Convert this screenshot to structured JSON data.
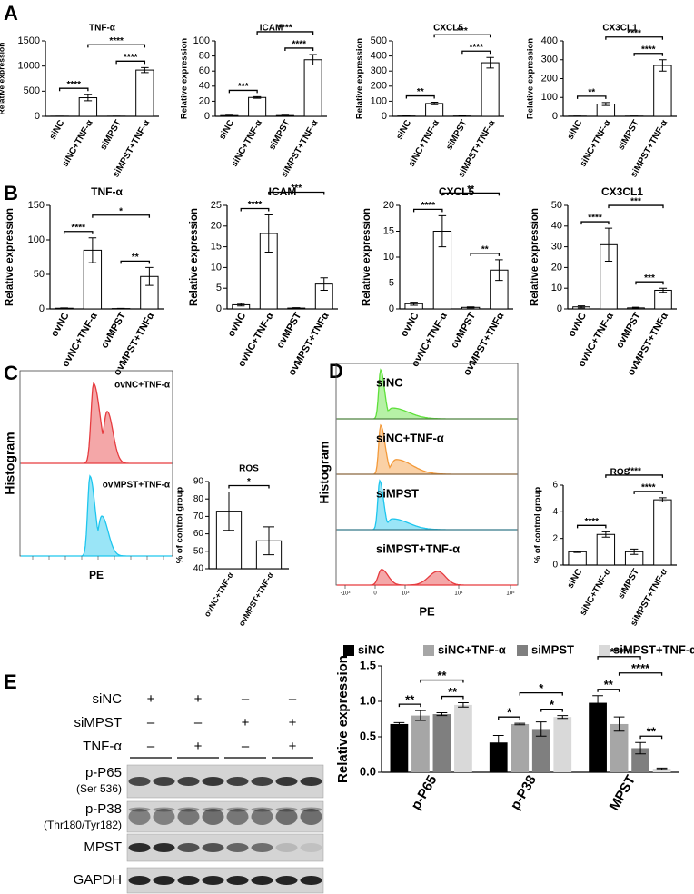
{
  "panel_labels": [
    "A",
    "B",
    "C",
    "D",
    "E"
  ],
  "chart_data": [
    {
      "type": "bar",
      "title": "TNF-α",
      "ylabel": "Relative expression",
      "categories": [
        "siNC",
        "siNC+TNF-α",
        "siMPST",
        "siMPST+TNF-α"
      ],
      "values": [
        2,
        370,
        2,
        920
      ],
      "errors": [
        1,
        60,
        1,
        50
      ],
      "color": "#ffffff",
      "ylim": [
        0,
        1500
      ],
      "yticks": [
        0,
        500,
        1000,
        1500
      ],
      "annotations": [
        {
          "between": [
            "siNC",
            "siNC+TNF-α"
          ],
          "label": "****"
        },
        {
          "between": [
            "siMPST",
            "siMPST+TNF-α"
          ],
          "label": "****"
        },
        {
          "between": [
            "siNC+TNF-α",
            "siMPST+TNF-α"
          ],
          "label": "****"
        }
      ]
    },
    {
      "type": "bar",
      "title": "ICAM",
      "ylabel": "Relative expression",
      "categories": [
        "siNC",
        "siNC+TNF-α",
        "siMPST",
        "siMPST+TNF-α"
      ],
      "values": [
        1,
        25,
        1,
        75
      ],
      "errors": [
        0.5,
        1,
        0.5,
        7
      ],
      "color": "#ffffff",
      "ylim": [
        0,
        100
      ],
      "yticks": [
        0,
        20,
        40,
        60,
        80,
        100
      ],
      "annotations": [
        {
          "between": [
            "siNC",
            "siNC+TNF-α"
          ],
          "label": "***"
        },
        {
          "between": [
            "siMPST",
            "siMPST+TNF-α"
          ],
          "label": "****"
        },
        {
          "between": [
            "siNC+TNF-α",
            "siMPST+TNF-α"
          ],
          "label": "****"
        }
      ]
    },
    {
      "type": "bar",
      "title": "CXCL5",
      "ylabel": "Relative expression",
      "categories": [
        "siNC",
        "siNC+TNF-α",
        "siMPST",
        "siMPST+TNF-α"
      ],
      "values": [
        2,
        85,
        2,
        355
      ],
      "errors": [
        1,
        8,
        1,
        35
      ],
      "color": "#ffffff",
      "ylim": [
        0,
        500
      ],
      "yticks": [
        0,
        100,
        200,
        300,
        400,
        500
      ],
      "annotations": [
        {
          "between": [
            "siNC",
            "siNC+TNF-α"
          ],
          "label": "**"
        },
        {
          "between": [
            "siMPST",
            "siMPST+TNF-α"
          ],
          "label": "****"
        },
        {
          "between": [
            "siNC+TNF-α",
            "siMPST+TNF-α"
          ],
          "label": "***"
        }
      ]
    },
    {
      "type": "bar",
      "title": "CX3CL1",
      "ylabel": "Relative expression",
      "categories": [
        "siNC",
        "siNC+TNF-α",
        "siMPST",
        "siMPST+TNF-α"
      ],
      "values": [
        1,
        65,
        1,
        270
      ],
      "errors": [
        0.5,
        8,
        0.5,
        30
      ],
      "color": "#ffffff",
      "ylim": [
        0,
        400
      ],
      "yticks": [
        0,
        100,
        200,
        300,
        400
      ],
      "annotations": [
        {
          "between": [
            "siNC",
            "siNC+TNF-α"
          ],
          "label": "**"
        },
        {
          "between": [
            "siMPST",
            "siMPST+TNF-α"
          ],
          "label": "****"
        },
        {
          "between": [
            "siNC+TNF-α",
            "siMPST+TNF-α"
          ],
          "label": "****"
        }
      ]
    },
    {
      "type": "bar",
      "title": "TNF-α",
      "ylabel": "Relative expression",
      "categories": [
        "ovNC",
        "ovNC+TNF-α",
        "ovMPST",
        "ovMPST+TNFα"
      ],
      "values": [
        1,
        85,
        0.5,
        47
      ],
      "errors": [
        0.5,
        18,
        0.3,
        13
      ],
      "color": "#ffffff",
      "ylim": [
        0,
        150
      ],
      "yticks": [
        0,
        50,
        100,
        150
      ],
      "annotations": [
        {
          "between": [
            "ovNC",
            "ovNC+TNF-α"
          ],
          "label": "****"
        },
        {
          "between": [
            "ovMPST",
            "ovMPST+TNFα"
          ],
          "label": "**"
        },
        {
          "between": [
            "ovNC+TNF-α",
            "ovMPST+TNFα"
          ],
          "label": "*"
        }
      ]
    },
    {
      "type": "bar",
      "title": "ICAM",
      "ylabel": "Relative expression",
      "categories": [
        "ovNC",
        "ovNC+TNF-α",
        "ovMPST",
        "ovMPST+TNFα"
      ],
      "values": [
        1,
        18.2,
        0.2,
        6
      ],
      "errors": [
        0.3,
        4.5,
        0.1,
        1.5
      ],
      "color": "#ffffff",
      "ylim": [
        0,
        25
      ],
      "yticks": [
        0,
        5,
        10,
        15,
        20,
        25
      ],
      "annotations": [
        {
          "between": [
            "ovNC",
            "ovNC+TNF-α"
          ],
          "label": "****"
        },
        {
          "between": [
            "ovNC+TNF-α",
            "ovMPST+TNFα"
          ],
          "label": "***"
        }
      ]
    },
    {
      "type": "bar",
      "title": "CXCL5",
      "ylabel": "Relative expression",
      "categories": [
        "ovNC",
        "ovNC+TNF-α",
        "ovMPST",
        "ovMPST+TNFα"
      ],
      "values": [
        1,
        15,
        0.3,
        7.5
      ],
      "errors": [
        0.3,
        3,
        0.1,
        2
      ],
      "color": "#ffffff",
      "ylim": [
        0,
        20
      ],
      "yticks": [
        0,
        5,
        10,
        15,
        20
      ],
      "annotations": [
        {
          "between": [
            "ovNC",
            "ovNC+TNF-α"
          ],
          "label": "****"
        },
        {
          "between": [
            "ovMPST",
            "ovMPST+TNFα"
          ],
          "label": "**"
        },
        {
          "between": [
            "ovNC+TNF-α",
            "ovMPST+TNFα"
          ],
          "label": "**"
        }
      ]
    },
    {
      "type": "bar",
      "title": "CX3CL1",
      "ylabel": "Relative expression",
      "categories": [
        "ovNC",
        "ovNC+TNF-α",
        "ovMPST",
        "ovMPST+TNFα"
      ],
      "values": [
        1,
        31,
        0.5,
        9
      ],
      "errors": [
        0.5,
        8,
        0.3,
        1
      ],
      "color": "#ffffff",
      "ylim": [
        0,
        50
      ],
      "yticks": [
        0,
        10,
        20,
        30,
        40,
        50
      ],
      "annotations": [
        {
          "between": [
            "ovNC",
            "ovNC+TNF-α"
          ],
          "label": "****"
        },
        {
          "between": [
            "ovMPST",
            "ovMPST+TNFα"
          ],
          "label": "***"
        },
        {
          "between": [
            "ovNC+TNF-α",
            "ovMPST+TNFα"
          ],
          "label": "***"
        }
      ]
    },
    {
      "type": "bar",
      "title": "ROS",
      "ylabel": "% of control group",
      "categories": [
        "ovNC+TNF-α",
        "ovMPST+TNF-α"
      ],
      "values": [
        73,
        56
      ],
      "errors": [
        11,
        8
      ],
      "color": "#ffffff",
      "ylim": [
        40,
        90
      ],
      "yticks": [
        40,
        50,
        60,
        70,
        80,
        90
      ],
      "annotations": [
        {
          "between": [
            "ovNC+TNF-α",
            "ovMPST+TNF-α"
          ],
          "label": "*"
        }
      ]
    },
    {
      "type": "bar",
      "title": "ROS",
      "ylabel": "% of control group",
      "categories": [
        "siNC",
        "siNC+TNF-α",
        "siMPST",
        "siMPST+TNF-α"
      ],
      "values": [
        1,
        2.3,
        1,
        4.9
      ],
      "errors": [
        0.05,
        0.2,
        0.2,
        0.15
      ],
      "color": "#ffffff",
      "ylim": [
        0,
        6
      ],
      "yticks": [
        0,
        2,
        4,
        6
      ],
      "annotations": [
        {
          "between": [
            "siNC",
            "siNC+TNF-α"
          ],
          "label": "****"
        },
        {
          "between": [
            "siMPST",
            "siMPST+TNF-α"
          ],
          "label": "****"
        },
        {
          "between": [
            "siNC+TNF-α",
            "siMPST+TNF-α"
          ],
          "label": "****"
        }
      ]
    },
    {
      "type": "grouped_bar",
      "ylabel": "Relative expression",
      "categories": [
        "p-P65",
        "p-P38",
        "MPST"
      ],
      "series": [
        {
          "name": "siNC",
          "color": "#000000",
          "values": [
            0.68,
            0.42,
            0.98
          ],
          "errors": [
            0.02,
            0.1,
            0.1
          ]
        },
        {
          "name": "siNC+TNF-α",
          "color": "#a6a6a6",
          "values": [
            0.8,
            0.68,
            0.68
          ],
          "errors": [
            0.07,
            0.01,
            0.1
          ]
        },
        {
          "name": "siMPST",
          "color": "#7f7f7f",
          "values": [
            0.82,
            0.61,
            0.34
          ],
          "errors": [
            0.02,
            0.1,
            0.08
          ]
        },
        {
          "name": "siMPST+TNF-α",
          "color": "#d9d9d9",
          "values": [
            0.95,
            0.78,
            0.05
          ],
          "errors": [
            0.03,
            0.02,
            0.01
          ]
        }
      ],
      "ylim": [
        0,
        1.5
      ],
      "yticks": [
        {
          "value": 0,
          "label": "0.0"
        },
        0.5,
        {
          "value": 1,
          "label": "1.0"
        },
        1.5
      ],
      "annotations": [
        {
          "category": "p-P65",
          "between": [
            "siNC",
            "siNC+TNF-α"
          ],
          "label": "**"
        },
        {
          "category": "p-P65",
          "between": [
            "siMPST",
            "siMPST+TNF-α"
          ],
          "label": "**"
        },
        {
          "category": "p-P65",
          "between": [
            "siNC+TNF-α",
            "siMPST+TNF-α"
          ],
          "label": "**"
        },
        {
          "category": "p-P38",
          "between": [
            "siNC",
            "siNC+TNF-α"
          ],
          "label": "*"
        },
        {
          "category": "p-P38",
          "between": [
            "siMPST",
            "siMPST+TNF-α"
          ],
          "label": "*"
        },
        {
          "category": "p-P38",
          "between": [
            "siNC+TNF-α",
            "siMPST+TNF-α"
          ],
          "label": "*"
        },
        {
          "category": "MPST",
          "between": [
            "siNC",
            "siNC+TNF-α"
          ],
          "label": "**"
        },
        {
          "category": "MPST",
          "between": [
            "siMPST",
            "siMPST+TNF-α"
          ],
          "label": "**"
        },
        {
          "category": "MPST",
          "between": [
            "siNC+TNF-α",
            "siMPST+TNF-α"
          ],
          "label": "****"
        },
        {
          "category": "MPST",
          "between": [
            "siNC",
            "siMPST"
          ],
          "label": "****"
        }
      ]
    }
  ],
  "flow_cytometry": [
    {
      "ylabel": "Histogram",
      "xlabel": "PE",
      "samples": [
        {
          "name": "ovNC+TNF-α",
          "color": "#e63b3f"
        },
        {
          "name": "ovMPST+TNF-α",
          "color": "#1ec6ee"
        }
      ]
    },
    {
      "ylabel": "Histogram",
      "xlabel": "PE",
      "x_tick_labels": [
        "-10³",
        "0",
        "10³",
        "10⁴",
        "10⁵"
      ],
      "samples": [
        {
          "name": "siNC",
          "color": "#5ee03a"
        },
        {
          "name": "siNC+TNF-α",
          "color": "#f39a3a"
        },
        {
          "name": "siMPST",
          "color": "#1ec6ee"
        },
        {
          "name": "siMPST+TNF-α",
          "color": "#e63b3f"
        }
      ]
    }
  ],
  "western_blot": {
    "conditions": [
      {
        "name": "siNC",
        "signs": [
          "+",
          "+",
          "–",
          "–"
        ]
      },
      {
        "name": "siMPST",
        "signs": [
          "–",
          "–",
          "+",
          "+"
        ]
      },
      {
        "name": "TNF-α",
        "signs": [
          "–",
          "+",
          "–",
          "+"
        ]
      }
    ],
    "bands": [
      {
        "name": "p-P65",
        "detail": "(Ser 536)"
      },
      {
        "name": "p-P38",
        "detail": "(Thr180/Tyr182)"
      },
      {
        "name": "MPST"
      },
      {
        "name": "GAPDH"
      }
    ]
  }
}
